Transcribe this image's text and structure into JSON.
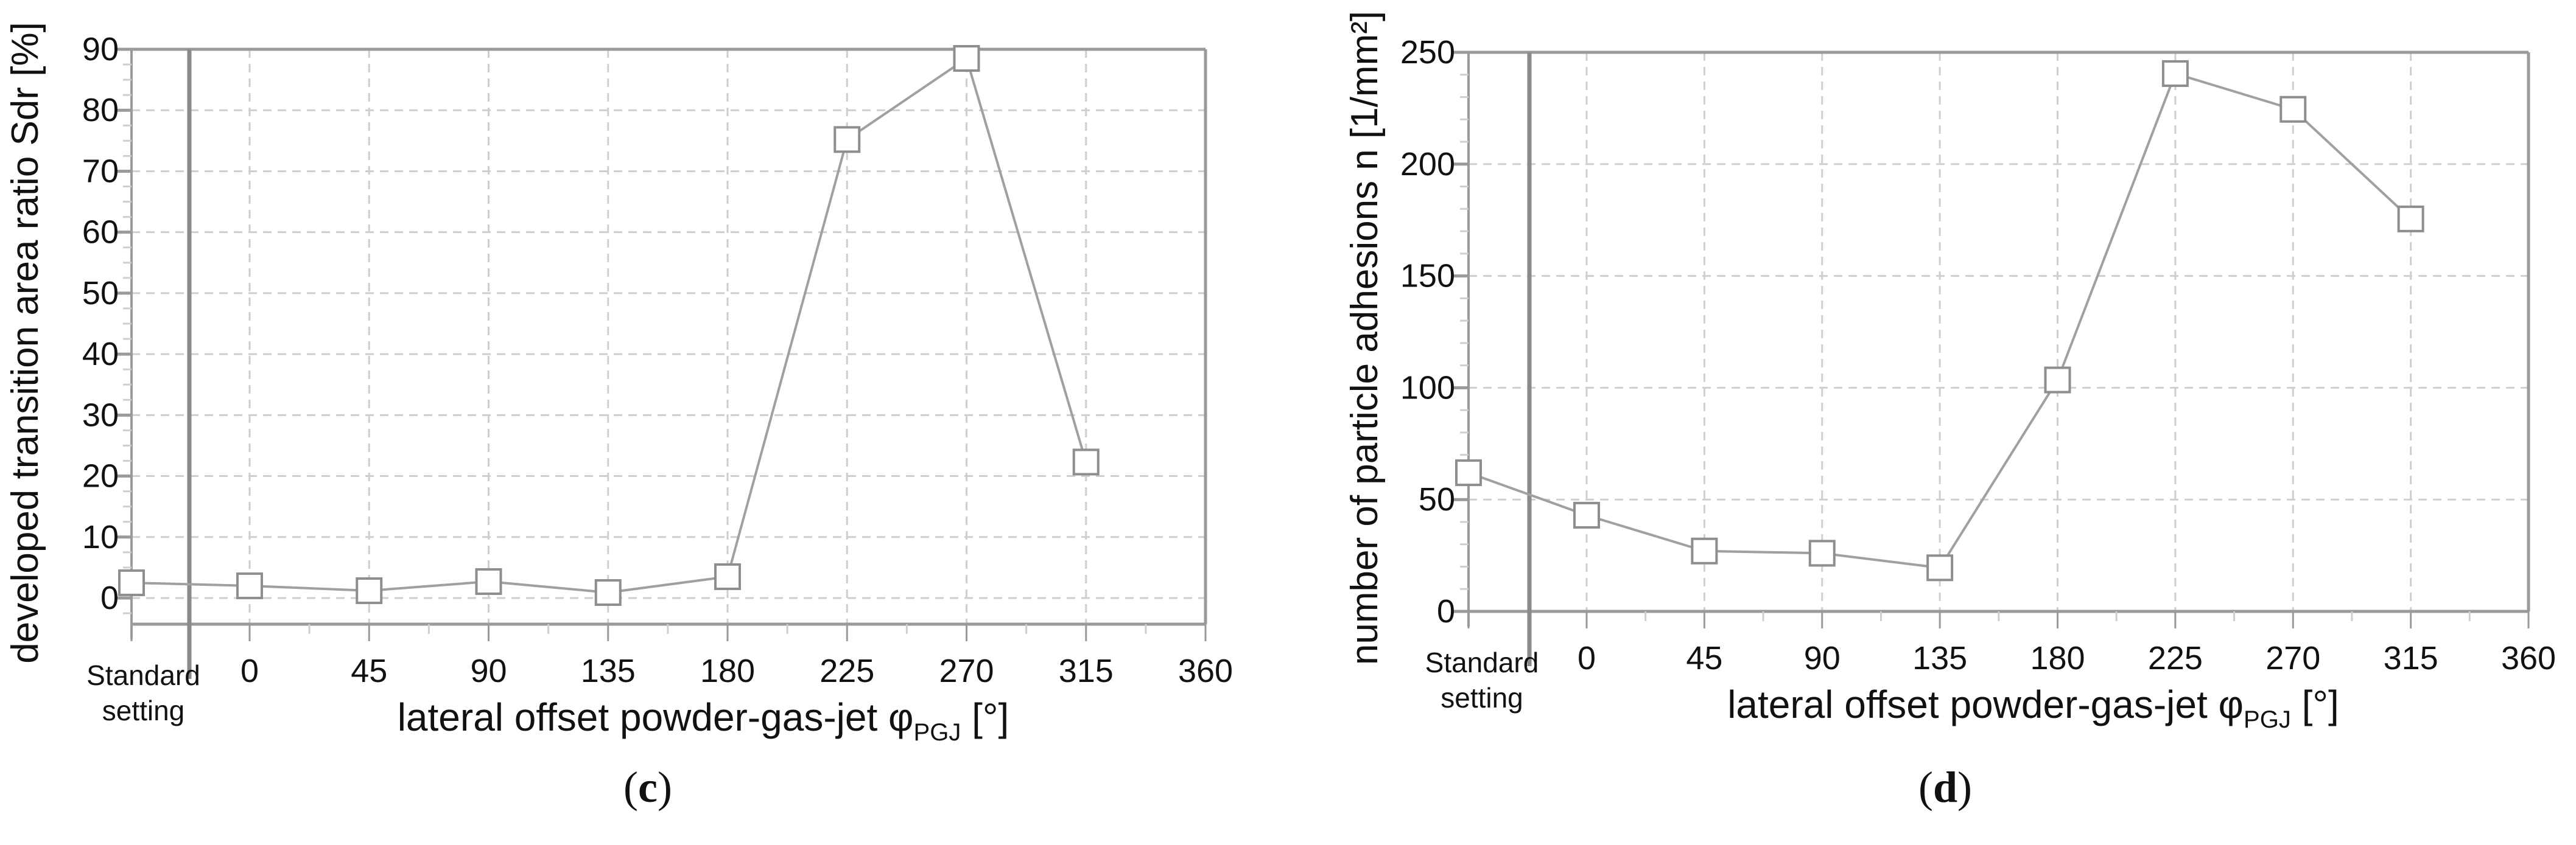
{
  "figure": {
    "panels": [
      "c",
      "d"
    ]
  },
  "chart_data": [
    {
      "id": "c",
      "type": "line",
      "caption": "(c)",
      "caption_letter": "c",
      "title": "",
      "xlabel": "lateral offset powder-gas-jet φPGJ [°]",
      "xlabel_main": "lateral offset powder-gas-jet φ",
      "xlabel_sub": "PGJ",
      "xlabel_unit": " [°]",
      "ylabel": "developed transition area ratio Sdr [%]",
      "categories": [
        "Standard setting",
        "0",
        "45",
        "90",
        "135",
        "180",
        "225",
        "270",
        "315"
      ],
      "x_ticks": [
        "Standard\nsetting",
        "0",
        "45",
        "90",
        "135",
        "180",
        "225",
        "270",
        "315",
        "360"
      ],
      "category_label_line1": "Standard",
      "category_label_line2": "setting",
      "x": [
        "Standard setting",
        0,
        45,
        90,
        135,
        180,
        225,
        270,
        315
      ],
      "values": [
        2.5,
        2.0,
        1.2,
        2.7,
        0.9,
        3.5,
        75.2,
        88.5,
        22.3
      ],
      "series": [
        {
          "name": "Sdr",
          "values": [
            2.5,
            2.0,
            1.2,
            2.7,
            0.9,
            3.5,
            75.2,
            88.5,
            22.3
          ],
          "marker": "open-square",
          "color": "#999999"
        }
      ],
      "y_ticks": [
        0,
        10,
        20,
        30,
        40,
        50,
        60,
        70,
        80,
        90
      ],
      "ylim": [
        -3.5,
        90
      ],
      "xlim": [
        0,
        360
      ],
      "grid": true,
      "legend": "none"
    },
    {
      "id": "d",
      "type": "line",
      "caption": "(d)",
      "caption_letter": "d",
      "title": "",
      "xlabel": "lateral offset powder-gas-jet φPGJ [°]",
      "xlabel_main": "lateral offset powder-gas-jet φ",
      "xlabel_sub": "PGJ",
      "xlabel_unit": " [°]",
      "ylabel": "number of particle adhesions n [1/mm²]",
      "categories": [
        "Standard setting",
        "0",
        "45",
        "90",
        "135",
        "180",
        "225",
        "270",
        "315"
      ],
      "x_ticks": [
        "Standard\nsetting",
        "0",
        "45",
        "90",
        "135",
        "180",
        "225",
        "270",
        "315",
        "360"
      ],
      "category_label_line1": "Standard",
      "category_label_line2": "setting",
      "x": [
        "Standard setting",
        0,
        45,
        90,
        135,
        180,
        225,
        270,
        315
      ],
      "values": [
        62,
        43,
        27,
        26,
        19.5,
        103.5,
        240.5,
        224.5,
        175.5
      ],
      "series": [
        {
          "name": "n",
          "values": [
            62,
            43,
            27,
            26,
            19.5,
            103.5,
            240.5,
            224.5,
            175.5
          ],
          "marker": "open-square",
          "color": "#999999"
        }
      ],
      "y_ticks": [
        0,
        50,
        100,
        150,
        200,
        250
      ],
      "ylim": [
        0,
        250
      ],
      "xlim": [
        0,
        360
      ],
      "grid": true,
      "legend": "none"
    }
  ],
  "colors": {
    "axis": "#9a9a9a",
    "divider": "#8a8a8a",
    "grid": "#cfcfcf",
    "line": "#a0a0a0",
    "marker_stroke": "#8e8e8e",
    "text": "#111111"
  }
}
